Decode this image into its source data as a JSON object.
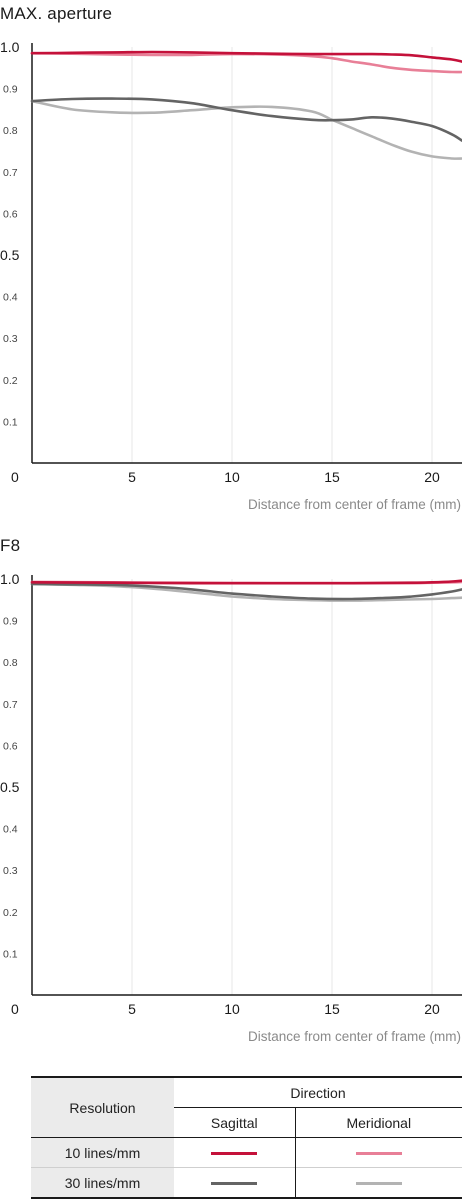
{
  "chart_data": [
    {
      "type": "line",
      "title": "MAX. aperture",
      "xlabel": "Distance from center of frame (mm)",
      "ylabel": "",
      "xlim": [
        0,
        21.5
      ],
      "ylim": [
        0,
        1.0
      ],
      "xticks": [
        "5",
        "10",
        "15",
        "20"
      ],
      "x_origin_label": "0",
      "yticks_major": [
        "1.0",
        "0.5"
      ],
      "yticks_minor": [
        "0.9",
        "0.8",
        "0.7",
        "0.6",
        "0.4",
        "0.3",
        "0.2",
        "0.1"
      ],
      "grid": true,
      "series": [
        {
          "name": "10 lines/mm Sagittal",
          "color": "#c4113a",
          "x": [
            0,
            2,
            4,
            6,
            8,
            10,
            12,
            14,
            16,
            17,
            18,
            19,
            20,
            21,
            21.5
          ],
          "y": [
            0.985,
            0.986,
            0.987,
            0.988,
            0.987,
            0.985,
            0.984,
            0.983,
            0.983,
            0.983,
            0.982,
            0.98,
            0.975,
            0.97,
            0.965
          ]
        },
        {
          "name": "10 lines/mm Meridional",
          "color": "#e87f97",
          "x": [
            0,
            2,
            4,
            6,
            8,
            10,
            12,
            14,
            15,
            16,
            17,
            18,
            19,
            20,
            21,
            21.5
          ],
          "y": [
            0.985,
            0.984,
            0.982,
            0.981,
            0.981,
            0.983,
            0.982,
            0.978,
            0.973,
            0.965,
            0.958,
            0.95,
            0.945,
            0.942,
            0.94,
            0.94
          ]
        },
        {
          "name": "30 lines/mm Sagittal",
          "color": "#646464",
          "x": [
            0,
            2,
            4,
            6,
            8,
            10,
            12,
            14,
            15,
            16,
            17,
            18,
            19,
            20,
            21,
            21.5
          ],
          "y": [
            0.87,
            0.875,
            0.876,
            0.874,
            0.865,
            0.848,
            0.834,
            0.825,
            0.824,
            0.826,
            0.831,
            0.828,
            0.82,
            0.81,
            0.79,
            0.775
          ]
        },
        {
          "name": "30 lines/mm Meridional",
          "color": "#b3b3b3",
          "x": [
            0,
            2,
            4,
            6,
            8,
            10,
            12,
            14,
            15,
            16,
            17,
            18,
            19,
            20,
            21,
            21.5
          ],
          "y": [
            0.87,
            0.85,
            0.843,
            0.842,
            0.848,
            0.855,
            0.856,
            0.845,
            0.825,
            0.805,
            0.785,
            0.765,
            0.748,
            0.737,
            0.732,
            0.732
          ]
        }
      ]
    },
    {
      "type": "line",
      "title": "F8",
      "xlabel": "Distance from center of frame (mm)",
      "ylabel": "",
      "xlim": [
        0,
        21.5
      ],
      "ylim": [
        0,
        1.0
      ],
      "xticks": [
        "5",
        "10",
        "15",
        "20"
      ],
      "x_origin_label": "0",
      "yticks_major": [
        "1.0",
        "0.5"
      ],
      "yticks_minor": [
        "0.9",
        "0.8",
        "0.7",
        "0.6",
        "0.4",
        "0.3",
        "0.2",
        "0.1"
      ],
      "grid": true,
      "series": [
        {
          "name": "10 lines/mm Sagittal",
          "color": "#c4113a",
          "x": [
            0,
            4,
            8,
            12,
            16,
            19,
            20,
            21,
            21.5
          ],
          "y": [
            0.992,
            0.991,
            0.99,
            0.99,
            0.99,
            0.991,
            0.992,
            0.994,
            0.996
          ]
        },
        {
          "name": "10 lines/mm Meridional",
          "color": "#e87f97",
          "x": [
            0,
            4,
            8,
            12,
            16,
            19,
            20,
            21,
            21.5
          ],
          "y": [
            0.993,
            0.992,
            0.991,
            0.99,
            0.99,
            0.99,
            0.991,
            0.992,
            0.993
          ]
        },
        {
          "name": "30 lines/mm Sagittal",
          "color": "#646464",
          "x": [
            0,
            2,
            4,
            6,
            8,
            10,
            12,
            14,
            16,
            18,
            19,
            20,
            21,
            21.5
          ],
          "y": [
            0.988,
            0.987,
            0.986,
            0.982,
            0.975,
            0.965,
            0.958,
            0.953,
            0.952,
            0.955,
            0.958,
            0.963,
            0.97,
            0.975
          ]
        },
        {
          "name": "30 lines/mm Meridional",
          "color": "#b3b3b3",
          "x": [
            0,
            2,
            4,
            6,
            8,
            10,
            12,
            14,
            16,
            18,
            20,
            21,
            21.5
          ],
          "y": [
            0.988,
            0.986,
            0.983,
            0.977,
            0.968,
            0.958,
            0.952,
            0.949,
            0.948,
            0.95,
            0.952,
            0.954,
            0.955
          ]
        }
      ]
    }
  ],
  "legend": {
    "resolution_header": "Resolution",
    "direction_header": "Direction",
    "sagittal_label": "Sagittal",
    "meridional_label": "Meridional",
    "rows": [
      {
        "label": "10 lines/mm",
        "sagittal_color": "#c4113a",
        "meridional_color": "#e87f97"
      },
      {
        "label": "30 lines/mm",
        "sagittal_color": "#646464",
        "meridional_color": "#b3b3b3"
      }
    ]
  }
}
